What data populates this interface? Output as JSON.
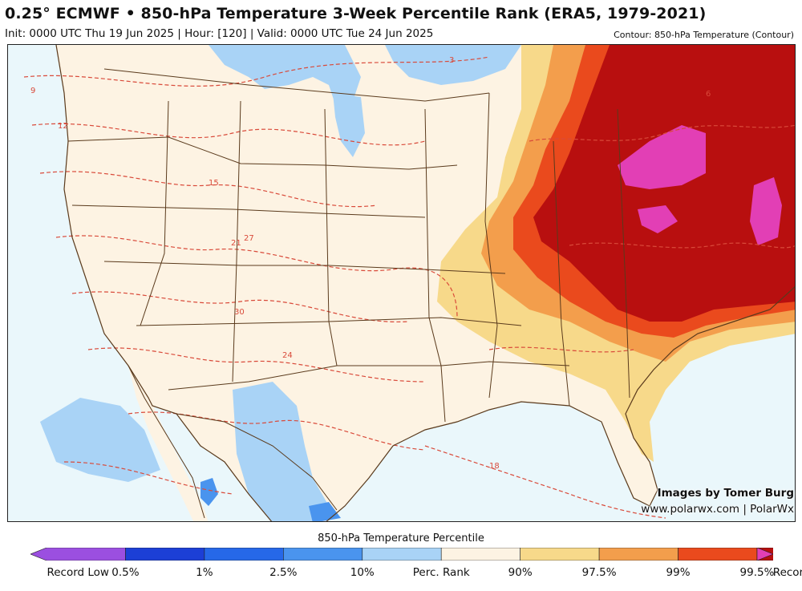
{
  "header": {
    "title": "0.25° ECMWF • 850-hPa Temperature 3-Week Percentile Rank (ERA5, 1979-2021)",
    "subtitle": "Init: 0000 UTC Thu 19 Jun 2025 | Hour: [120] | Valid: 0000 UTC Tue 24 Jun 2025",
    "contour_note": "Contour: 850-hPa Temperature (Contour)"
  },
  "credits": {
    "line1": "Images by Tomer Burg",
    "line2": "www.polarwx.com | PolarWx"
  },
  "colorbar": {
    "title": "850-hPa Temperature Percentile",
    "labels": [
      "Record Low",
      "0.5%",
      "1%",
      "2.5%",
      "10%",
      "Perc. Rank",
      "90%",
      "97.5%",
      "99%",
      "99.5%",
      "Record Max"
    ],
    "colors": [
      "#9b4fe0",
      "#1c3fd6",
      "#2668e8",
      "#4a94ee",
      "#a9d3f6",
      "#fdf3e3",
      "#f7d98a",
      "#f39e4c",
      "#ea4a1d",
      "#b80f0f",
      "#e23fb5"
    ]
  },
  "contour_labels": [
    "3",
    "6",
    "9",
    "12",
    "15",
    "18",
    "21",
    "24",
    "27",
    "30"
  ],
  "colors": {
    "ocean": "#eaf7fb",
    "land": "#fdf3e3",
    "border": "#5a3a1c",
    "contour": "#d94a3a"
  }
}
